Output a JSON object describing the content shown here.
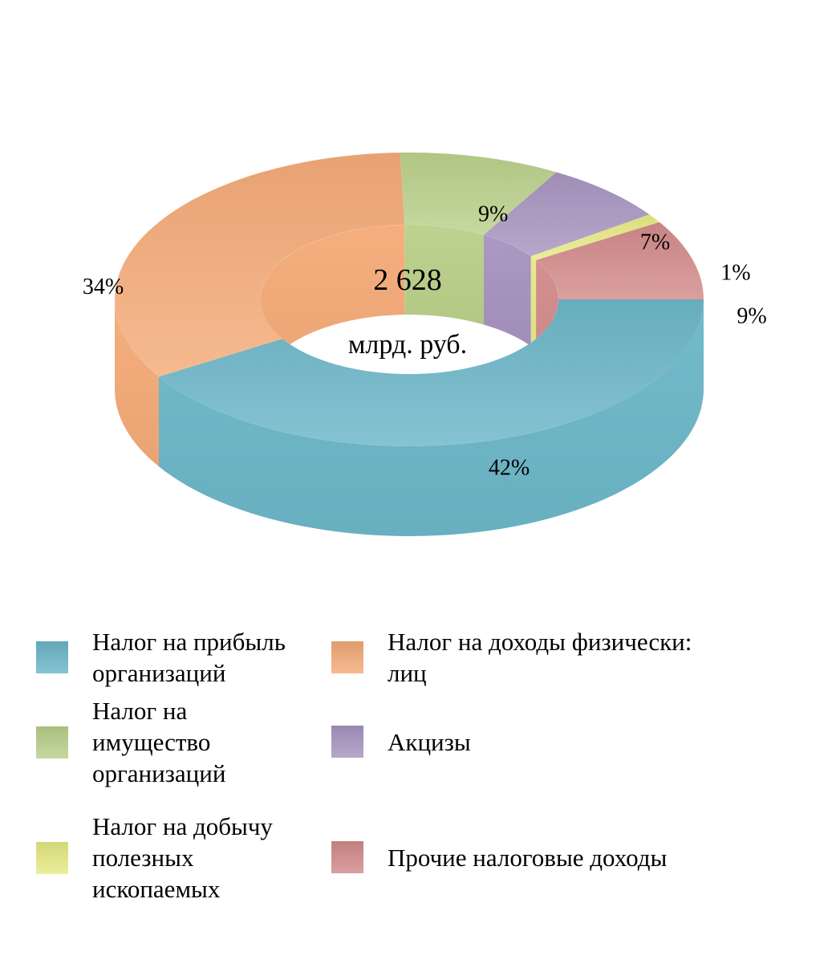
{
  "chart_data": {
    "type": "pie",
    "variant": "3d-donut",
    "center_value": "2 628",
    "center_unit": "млрд. руб.",
    "categories": [
      "Налог на прибыль организаций",
      "Налог на доходы физически: лиц",
      "Налог на имущество организаций",
      "Акцизы",
      "Налог на добычу полезных ископаемых",
      "Прочие налоговые доходы"
    ],
    "values": [
      42,
      34,
      9,
      7,
      1,
      9
    ],
    "labels": [
      "42%",
      "34%",
      "9%",
      "7%",
      "1%",
      "9%"
    ],
    "colors": [
      "#6cb6c8",
      "#f4ab78",
      "#b9d08a",
      "#a794c0",
      "#e6ea84",
      "#d28a8a"
    ],
    "legend_position": "bottom"
  },
  "legend": [
    {
      "label": "Налог на прибыль\nорганизаций",
      "color": "#6cb6c8"
    },
    {
      "label": "Налог на доходы физически:\nлиц",
      "color": "#f4ab78"
    },
    {
      "label": "Налог на\nимущество\nорганизаций",
      "color": "#b9d08a"
    },
    {
      "label": "Акцизы",
      "color": "#a794c0"
    },
    {
      "label": "Налог на добычу\nполезных\nископаемых",
      "color": "#e6ea84"
    },
    {
      "label": "Прочие налоговые доходы",
      "color": "#d28a8a"
    }
  ]
}
